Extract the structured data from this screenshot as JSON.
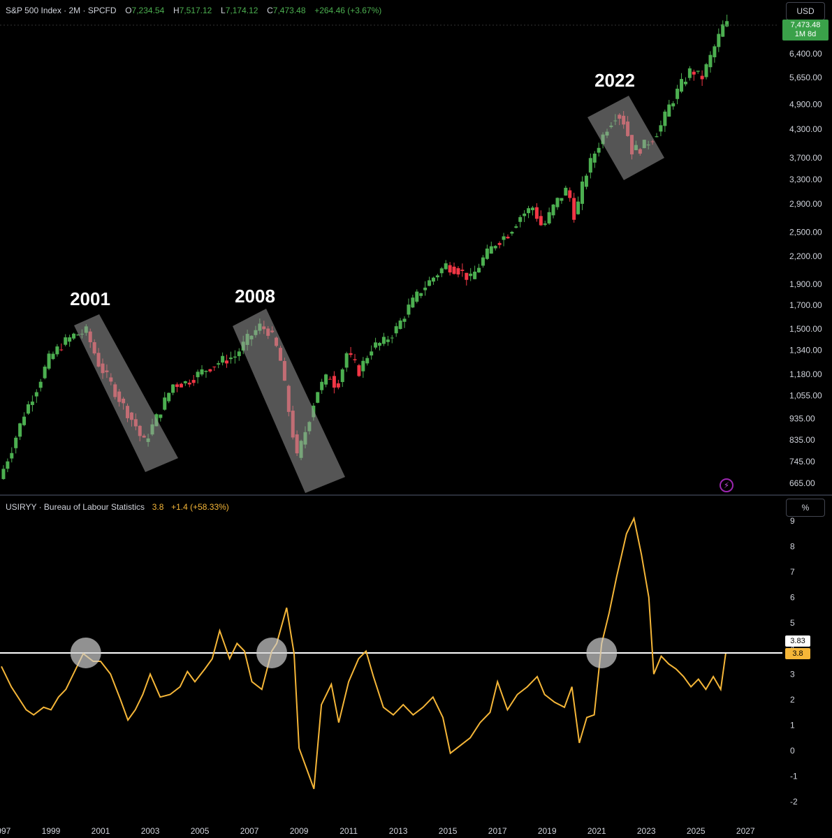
{
  "header": {
    "symbol": "S&P 500 Index · 2M · SPCFD",
    "o_label": "O",
    "o": "7,234.54",
    "h_label": "H",
    "h": "7,517.12",
    "l_label": "L",
    "l": "7,174.12",
    "c_label": "C",
    "c": "7,473.48",
    "change": "+264.46 (+3.67%)"
  },
  "currency_button": "USD",
  "percent_button": "%",
  "price_badge": {
    "price": "7,473.48",
    "countdown": "1M 8d"
  },
  "indicator_header": {
    "name": "USIRYY · Bureau of Labour Statistics",
    "value": "3.8",
    "change": "+1.4 (+58.33%)"
  },
  "line_badges": {
    "horizontal_line": "3.83",
    "last_value": "3.8"
  },
  "annotations": [
    "2001",
    "2008",
    "2022"
  ],
  "colors": {
    "up": "#4caf50",
    "down": "#f23645",
    "line": "#f5b638",
    "grid_text": "#d1d4dc",
    "highlight": "#9a9a9a"
  },
  "icons": [
    "lightning-icon"
  ],
  "chart_data": [
    {
      "type": "candlestick",
      "title": "S&P 500 Index · 2M · SPCFD",
      "scale": "log",
      "y_ticks": [
        665,
        745,
        835,
        935,
        1055,
        1180,
        1340,
        1500,
        1700,
        1900,
        2200,
        2500,
        2900,
        3300,
        3700,
        4300,
        4900,
        5650,
        6400
      ],
      "y_tick_labels": [
        "665.00",
        "745.00",
        "835.00",
        "935.00",
        "1,055.00",
        "1,180.00",
        "1,340.00",
        "1,500.00",
        "1,700.00",
        "1,900.00",
        "2,200.00",
        "2,500.00",
        "2,900.00",
        "3,300.00",
        "3,700.00",
        "4,300.00",
        "4,900.00",
        "5,650.00",
        "6,400.00"
      ],
      "series": [
        {
          "values": [
            [
              1997.0,
              680
            ],
            [
              1997.5,
              800
            ],
            [
              1998.0,
              960
            ],
            [
              1998.5,
              1100
            ],
            [
              1999.0,
              1280
            ],
            [
              1999.5,
              1380
            ],
            [
              2000.0,
              1450
            ],
            [
              2000.5,
              1480
            ],
            [
              2001.0,
              1250
            ],
            [
              2001.5,
              1120
            ],
            [
              2002.0,
              1000
            ],
            [
              2002.5,
              900
            ],
            [
              2002.8,
              820
            ],
            [
              2003.0,
              860
            ],
            [
              2003.5,
              980
            ],
            [
              2004.0,
              1120
            ],
            [
              2004.5,
              1130
            ],
            [
              2005.0,
              1180
            ],
            [
              2005.5,
              1230
            ],
            [
              2006.0,
              1270
            ],
            [
              2006.5,
              1300
            ],
            [
              2007.0,
              1420
            ],
            [
              2007.5,
              1520
            ],
            [
              2007.9,
              1480
            ],
            [
              2008.3,
              1300
            ],
            [
              2008.7,
              950
            ],
            [
              2009.0,
              760
            ],
            [
              2009.4,
              900
            ],
            [
              2009.8,
              1080
            ],
            [
              2010.3,
              1180
            ],
            [
              2010.6,
              1100
            ],
            [
              2011.0,
              1320
            ],
            [
              2011.5,
              1200
            ],
            [
              2012.0,
              1360
            ],
            [
              2012.5,
              1400
            ],
            [
              2013.0,
              1500
            ],
            [
              2013.5,
              1680
            ],
            [
              2014.0,
              1840
            ],
            [
              2014.5,
              1970
            ],
            [
              2015.0,
              2100
            ],
            [
              2015.5,
              2050
            ],
            [
              2016.0,
              1950
            ],
            [
              2016.5,
              2170
            ],
            [
              2017.0,
              2360
            ],
            [
              2017.5,
              2480
            ],
            [
              2018.0,
              2720
            ],
            [
              2018.5,
              2850
            ],
            [
              2018.9,
              2550
            ],
            [
              2019.4,
              2900
            ],
            [
              2019.9,
              3150
            ],
            [
              2020.2,
              2700
            ],
            [
              2020.6,
              3350
            ],
            [
              2021.0,
              3800
            ],
            [
              2021.5,
              4350
            ],
            [
              2021.9,
              4700
            ],
            [
              2022.2,
              4450
            ],
            [
              2022.5,
              3850
            ],
            [
              2022.9,
              3900
            ],
            [
              2023.3,
              4100
            ],
            [
              2023.7,
              4400
            ],
            [
              2024.0,
              4850
            ],
            [
              2024.5,
              5450
            ],
            [
              2024.9,
              5900
            ],
            [
              2025.3,
              5600
            ],
            [
              2025.7,
              6350
            ],
            [
              2026.2,
              7473
            ]
          ]
        }
      ],
      "annotations": [
        "2001",
        "2008",
        "2022"
      ]
    },
    {
      "type": "line",
      "title": "USIRYY · Bureau of Labour Statistics",
      "xlim": [
        1997,
        2027.5
      ],
      "ylim": [
        -2,
        9
      ],
      "x_tick_labels": [
        "1997",
        "1999",
        "2001",
        "2003",
        "2005",
        "2007",
        "2009",
        "2011",
        "2013",
        "2015",
        "2017",
        "2019",
        "2021",
        "2023",
        "2025",
        "2027"
      ],
      "y_tick_labels": [
        "-2",
        "-1",
        "0",
        "1",
        "2",
        "3",
        "4",
        "5",
        "6",
        "7",
        "8",
        "9"
      ],
      "horizontal_line": 3.83,
      "series": [
        {
          "values": [
            [
              1997.0,
              3.3
            ],
            [
              1997.4,
              2.5
            ],
            [
              1998.0,
              1.6
            ],
            [
              1998.3,
              1.4
            ],
            [
              1998.7,
              1.7
            ],
            [
              1999.0,
              1.6
            ],
            [
              1999.3,
              2.1
            ],
            [
              1999.6,
              2.4
            ],
            [
              2000.0,
              3.2
            ],
            [
              2000.3,
              3.8
            ],
            [
              2000.7,
              3.5
            ],
            [
              2001.0,
              3.5
            ],
            [
              2001.4,
              3.0
            ],
            [
              2001.8,
              2.0
            ],
            [
              2002.1,
              1.2
            ],
            [
              2002.4,
              1.6
            ],
            [
              2002.7,
              2.2
            ],
            [
              2003.0,
              3.0
            ],
            [
              2003.4,
              2.1
            ],
            [
              2003.8,
              2.2
            ],
            [
              2004.2,
              2.5
            ],
            [
              2004.5,
              3.1
            ],
            [
              2004.8,
              2.7
            ],
            [
              2005.2,
              3.2
            ],
            [
              2005.5,
              3.6
            ],
            [
              2005.8,
              4.7
            ],
            [
              2006.2,
              3.6
            ],
            [
              2006.5,
              4.2
            ],
            [
              2006.8,
              3.9
            ],
            [
              2007.1,
              2.7
            ],
            [
              2007.5,
              2.4
            ],
            [
              2007.9,
              3.9
            ],
            [
              2008.1,
              4.2
            ],
            [
              2008.5,
              5.6
            ],
            [
              2008.8,
              3.8
            ],
            [
              2009.0,
              0.1
            ],
            [
              2009.3,
              -0.7
            ],
            [
              2009.6,
              -1.5
            ],
            [
              2009.9,
              1.8
            ],
            [
              2010.3,
              2.6
            ],
            [
              2010.6,
              1.1
            ],
            [
              2011.0,
              2.7
            ],
            [
              2011.4,
              3.6
            ],
            [
              2011.7,
              3.9
            ],
            [
              2012.0,
              2.9
            ],
            [
              2012.4,
              1.7
            ],
            [
              2012.8,
              1.4
            ],
            [
              2013.2,
              1.8
            ],
            [
              2013.6,
              1.4
            ],
            [
              2014.0,
              1.7
            ],
            [
              2014.4,
              2.1
            ],
            [
              2014.8,
              1.3
            ],
            [
              2015.1,
              -0.1
            ],
            [
              2015.5,
              0.2
            ],
            [
              2015.9,
              0.5
            ],
            [
              2016.3,
              1.1
            ],
            [
              2016.7,
              1.5
            ],
            [
              2017.0,
              2.7
            ],
            [
              2017.4,
              1.6
            ],
            [
              2017.8,
              2.2
            ],
            [
              2018.2,
              2.5
            ],
            [
              2018.6,
              2.9
            ],
            [
              2018.9,
              2.2
            ],
            [
              2019.3,
              1.9
            ],
            [
              2019.7,
              1.7
            ],
            [
              2020.0,
              2.5
            ],
            [
              2020.3,
              0.3
            ],
            [
              2020.6,
              1.3
            ],
            [
              2020.9,
              1.4
            ],
            [
              2021.2,
              4.2
            ],
            [
              2021.5,
              5.4
            ],
            [
              2021.8,
              6.8
            ],
            [
              2022.2,
              8.5
            ],
            [
              2022.5,
              9.1
            ],
            [
              2022.8,
              7.7
            ],
            [
              2023.1,
              6.0
            ],
            [
              2023.3,
              3.0
            ],
            [
              2023.6,
              3.7
            ],
            [
              2023.9,
              3.4
            ],
            [
              2024.2,
              3.2
            ],
            [
              2024.5,
              2.9
            ],
            [
              2024.8,
              2.5
            ],
            [
              2025.1,
              2.8
            ],
            [
              2025.4,
              2.4
            ],
            [
              2025.7,
              2.9
            ],
            [
              2026.0,
              2.4
            ],
            [
              2026.2,
              3.8
            ]
          ]
        }
      ]
    }
  ]
}
